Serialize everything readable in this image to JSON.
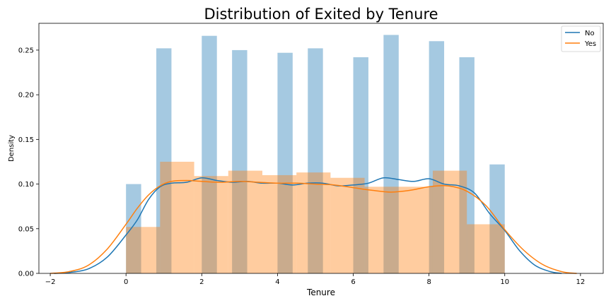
{
  "chart_data": {
    "type": "histogram-kde",
    "title": "Distribution of Exited by Tenure",
    "xlabel": "Tenure",
    "ylabel": "Density",
    "xlim": [
      -2.3,
      12.6
    ],
    "ylim": [
      0,
      0.28
    ],
    "xticks": [
      -2,
      0,
      2,
      4,
      6,
      8,
      10,
      12
    ],
    "yticks": [
      0.0,
      0.05,
      0.1,
      0.15,
      0.2,
      0.25
    ],
    "legend_position": "top-right",
    "series": [
      {
        "name": "No",
        "hist_color": "#1f77b4",
        "line_color": "#1f77b4",
        "bins": [
          [
            0.0,
            0.4,
            0.1
          ],
          [
            0.4,
            0.8,
            0.0
          ],
          [
            0.8,
            1.2,
            0.252
          ],
          [
            1.2,
            1.6,
            0.0
          ],
          [
            1.6,
            2.0,
            0.0
          ],
          [
            2.0,
            2.4,
            0.266
          ],
          [
            2.4,
            2.8,
            0.0
          ],
          [
            2.8,
            3.2,
            0.25
          ],
          [
            3.2,
            3.6,
            0.0
          ],
          [
            3.6,
            4.0,
            0.0
          ],
          [
            4.0,
            4.4,
            0.247
          ],
          [
            4.4,
            4.8,
            0.0
          ],
          [
            4.8,
            5.2,
            0.252
          ],
          [
            5.2,
            5.6,
            0.0
          ],
          [
            5.6,
            6.0,
            0.0
          ],
          [
            6.0,
            6.4,
            0.242
          ],
          [
            6.4,
            6.8,
            0.0
          ],
          [
            6.8,
            7.2,
            0.267
          ],
          [
            7.2,
            7.6,
            0.0
          ],
          [
            7.6,
            8.0,
            0.0
          ],
          [
            8.0,
            8.4,
            0.26
          ],
          [
            8.4,
            8.8,
            0.0
          ],
          [
            8.8,
            9.2,
            0.242
          ],
          [
            9.2,
            9.6,
            0.0
          ],
          [
            9.6,
            10.0,
            0.122
          ]
        ],
        "kde": [
          [
            -1.9,
            0.0
          ],
          [
            -1.5,
            0.001
          ],
          [
            -1.0,
            0.005
          ],
          [
            -0.5,
            0.018
          ],
          [
            0.0,
            0.043
          ],
          [
            0.3,
            0.06
          ],
          [
            0.6,
            0.083
          ],
          [
            0.9,
            0.097
          ],
          [
            1.2,
            0.101
          ],
          [
            1.6,
            0.102
          ],
          [
            2.0,
            0.107
          ],
          [
            2.4,
            0.104
          ],
          [
            2.8,
            0.102
          ],
          [
            3.2,
            0.103
          ],
          [
            3.6,
            0.101
          ],
          [
            4.0,
            0.101
          ],
          [
            4.4,
            0.099
          ],
          [
            4.8,
            0.101
          ],
          [
            5.2,
            0.101
          ],
          [
            5.6,
            0.098
          ],
          [
            6.0,
            0.099
          ],
          [
            6.4,
            0.101
          ],
          [
            6.8,
            0.107
          ],
          [
            7.2,
            0.105
          ],
          [
            7.6,
            0.103
          ],
          [
            8.0,
            0.106
          ],
          [
            8.4,
            0.1
          ],
          [
            8.8,
            0.098
          ],
          [
            9.2,
            0.09
          ],
          [
            9.6,
            0.067
          ],
          [
            10.0,
            0.048
          ],
          [
            10.4,
            0.025
          ],
          [
            10.8,
            0.009
          ],
          [
            11.2,
            0.002
          ],
          [
            11.5,
            0.0
          ]
        ]
      },
      {
        "name": "Yes",
        "hist_color": "#ff7f0e",
        "line_color": "#ff7f0e",
        "bins": [
          [
            0.0,
            0.9,
            0.052
          ],
          [
            0.9,
            1.8,
            0.125
          ],
          [
            1.8,
            2.7,
            0.109
          ],
          [
            2.7,
            3.6,
            0.115
          ],
          [
            3.6,
            4.5,
            0.11
          ],
          [
            4.5,
            5.4,
            0.113
          ],
          [
            5.4,
            6.3,
            0.107
          ],
          [
            6.3,
            7.2,
            0.097
          ],
          [
            7.2,
            8.1,
            0.097
          ],
          [
            8.1,
            9.0,
            0.115
          ],
          [
            9.0,
            10.0,
            0.055
          ]
        ],
        "kde": [
          [
            -2.0,
            0.0
          ],
          [
            -1.5,
            0.002
          ],
          [
            -1.0,
            0.009
          ],
          [
            -0.5,
            0.027
          ],
          [
            0.0,
            0.055
          ],
          [
            0.3,
            0.073
          ],
          [
            0.6,
            0.088
          ],
          [
            0.9,
            0.098
          ],
          [
            1.2,
            0.103
          ],
          [
            1.6,
            0.104
          ],
          [
            2.0,
            0.103
          ],
          [
            2.5,
            0.102
          ],
          [
            3.0,
            0.103
          ],
          [
            3.5,
            0.102
          ],
          [
            4.0,
            0.101
          ],
          [
            4.5,
            0.101
          ],
          [
            5.0,
            0.1
          ],
          [
            5.5,
            0.099
          ],
          [
            6.0,
            0.096
          ],
          [
            6.5,
            0.093
          ],
          [
            7.0,
            0.091
          ],
          [
            7.5,
            0.093
          ],
          [
            8.0,
            0.097
          ],
          [
            8.5,
            0.098
          ],
          [
            9.0,
            0.092
          ],
          [
            9.5,
            0.076
          ],
          [
            10.0,
            0.049
          ],
          [
            10.5,
            0.026
          ],
          [
            11.0,
            0.01
          ],
          [
            11.5,
            0.002
          ],
          [
            11.9,
            0.0
          ]
        ]
      }
    ],
    "grid": false
  }
}
